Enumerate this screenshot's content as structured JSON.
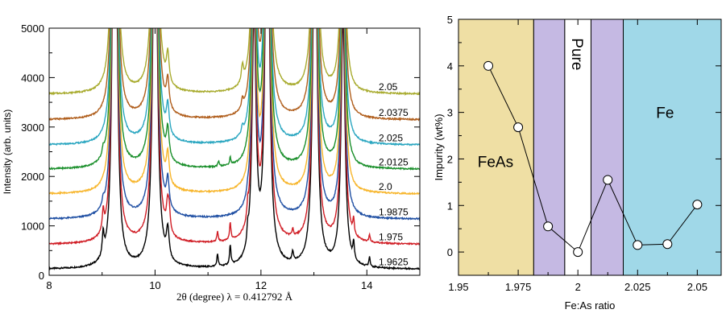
{
  "chart_data": [
    {
      "type": "line",
      "xlabel": "2θ (degree) λ = 0.412792 Å",
      "ylabel": "Intensity (arb. units)",
      "xlim": [
        8,
        15
      ],
      "ylim": [
        0,
        5000
      ],
      "xticks": [
        8,
        10,
        12,
        14
      ],
      "yticks": [
        0,
        1000,
        2000,
        3000,
        4000,
        5000
      ],
      "grid": false,
      "peaks": [
        {
          "x": 9.22,
          "h": 6000,
          "w": 0.04
        },
        {
          "x": 9.26,
          "h": 5000,
          "w": 0.04
        },
        {
          "x": 10.0,
          "h": 9000,
          "w": 0.045
        },
        {
          "x": 10.24,
          "h": 600,
          "w": 0.03
        },
        {
          "x": 11.87,
          "h": 5000,
          "w": 0.045
        },
        {
          "x": 12.12,
          "h": 9000,
          "w": 0.045
        },
        {
          "x": 13.02,
          "h": 8000,
          "w": 0.045
        },
        {
          "x": 13.55,
          "h": 5000,
          "w": 0.045
        }
      ],
      "series": [
        {
          "label": "1.9625",
          "offset": 120,
          "color": "#000000",
          "impurity": [
            {
              "x": 9.02,
              "h": 450,
              "w": 0.02
            },
            {
              "x": 11.18,
              "h": 250,
              "w": 0.015
            },
            {
              "x": 11.42,
              "h": 400,
              "w": 0.015
            },
            {
              "x": 11.75,
              "h": 300,
              "w": 0.015
            },
            {
              "x": 12.6,
              "h": 200,
              "w": 0.015
            },
            {
              "x": 13.75,
              "h": 350,
              "w": 0.015
            },
            {
              "x": 14.05,
              "h": 200,
              "w": 0.015
            }
          ]
        },
        {
          "label": "1.975",
          "offset": 620,
          "color": "#d01c24",
          "impurity": [
            {
              "x": 9.02,
              "h": 400,
              "w": 0.02
            },
            {
              "x": 10.27,
              "h": 300,
              "w": 0.02
            },
            {
              "x": 11.18,
              "h": 200,
              "w": 0.015
            },
            {
              "x": 11.42,
              "h": 350,
              "w": 0.015
            },
            {
              "x": 11.75,
              "h": 250,
              "w": 0.015
            },
            {
              "x": 12.6,
              "h": 150,
              "w": 0.015
            },
            {
              "x": 13.75,
              "h": 300,
              "w": 0.015
            },
            {
              "x": 14.05,
              "h": 150,
              "w": 0.015
            }
          ]
        },
        {
          "label": "1.9875",
          "offset": 1130,
          "color": "#1f4fa3",
          "impurity": [
            {
              "x": 9.02,
              "h": 150,
              "w": 0.02
            },
            {
              "x": 11.75,
              "h": 100,
              "w": 0.015
            }
          ]
        },
        {
          "label": "2.0",
          "offset": 1640,
          "color": "#f7b52a",
          "impurity": []
        },
        {
          "label": "2.0125",
          "offset": 2140,
          "color": "#1a8f2b",
          "impurity": [
            {
              "x": 9.02,
              "h": 150,
              "w": 0.02
            },
            {
              "x": 11.2,
              "h": 100,
              "w": 0.015
            },
            {
              "x": 11.42,
              "h": 150,
              "w": 0.015
            }
          ]
        },
        {
          "label": "2.025",
          "offset": 2630,
          "color": "#2aa6c0",
          "impurity": [
            {
              "x": 11.65,
              "h": 150,
              "w": 0.02
            }
          ]
        },
        {
          "label": "2.0375",
          "offset": 3140,
          "color": "#b05e1c",
          "impurity": [
            {
              "x": 11.65,
              "h": 200,
              "w": 0.02
            }
          ]
        },
        {
          "label": "2.05",
          "offset": 3660,
          "color": "#a8ab2e",
          "impurity": [
            {
              "x": 11.65,
              "h": 350,
              "w": 0.025
            }
          ]
        }
      ]
    },
    {
      "type": "line",
      "xlabel": "Fe:As ratio",
      "ylabel": "Impurity (wt%)",
      "xlim": [
        1.95,
        2.06
      ],
      "ylim": [
        -0.5,
        5
      ],
      "xticks": [
        1.95,
        1.975,
        2,
        2.025,
        2.05
      ],
      "xtick_labels": [
        "1.95",
        "1.975",
        "2",
        "2.025",
        "2.05"
      ],
      "yticks": [
        0,
        1,
        2,
        3,
        4,
        5
      ],
      "grid": false,
      "x": [
        1.9625,
        1.975,
        1.9875,
        2.0,
        2.0125,
        2.025,
        2.0375,
        2.05
      ],
      "y": [
        4.0,
        2.68,
        0.55,
        0.0,
        1.55,
        0.15,
        0.17,
        1.02
      ],
      "regions": [
        {
          "from": 1.95,
          "to": 1.9815,
          "color": "#efdfa4",
          "label": "FeAs"
        },
        {
          "from": 1.9815,
          "to": 1.9945,
          "color": "#c5b9e3",
          "label": ""
        },
        {
          "from": 1.9945,
          "to": 2.0055,
          "color": "#ffffff",
          "label": "Pure"
        },
        {
          "from": 2.0055,
          "to": 2.019,
          "color": "#c5b9e3",
          "label": ""
        },
        {
          "from": 2.019,
          "to": 2.06,
          "color": "#a0d8e8",
          "label": "Fe"
        }
      ]
    }
  ]
}
